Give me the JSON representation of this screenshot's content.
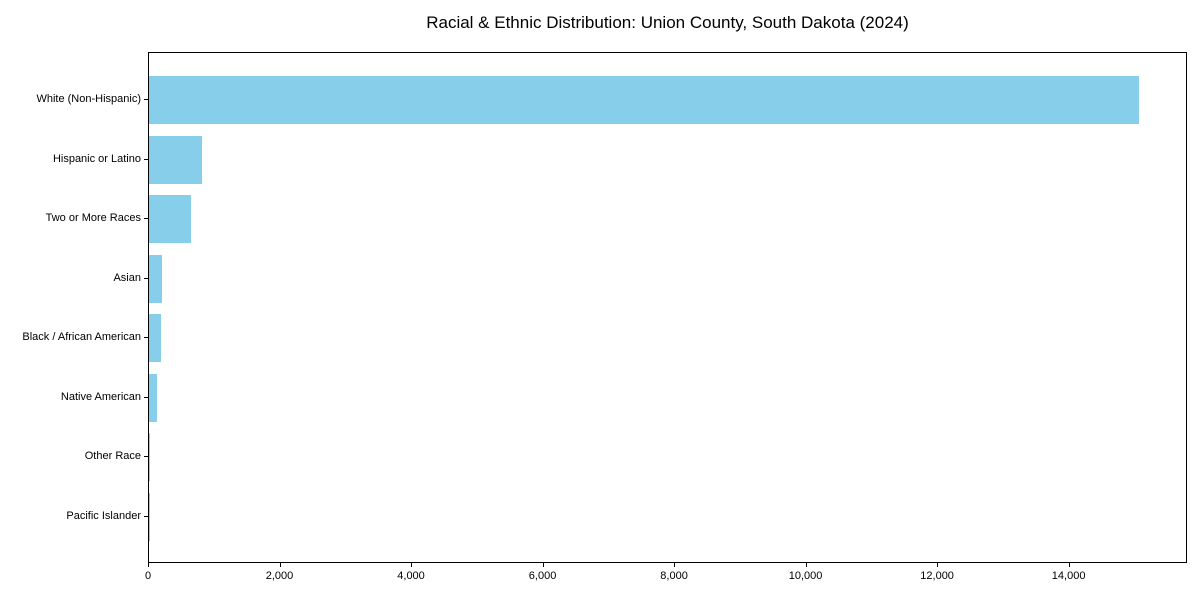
{
  "figure": {
    "background_color": "#ffffff",
    "axis_color": "#000000",
    "text_color": "#000000"
  },
  "chart_data": {
    "type": "bar",
    "orientation": "horizontal",
    "title": "Racial & Ethnic Distribution: Union County, South Dakota (2024)",
    "categories": [
      "White (Non-Hispanic)",
      "Hispanic or Latino",
      "Two or More Races",
      "Asian",
      "Black / African American",
      "Native American",
      "Other Race",
      "Pacific Islander"
    ],
    "values": [
      15050,
      810,
      640,
      200,
      175,
      120,
      15,
      6
    ],
    "xlabel": "",
    "ylabel": "",
    "xlim": [
      0,
      15800
    ],
    "x_ticks": [
      0,
      2000,
      4000,
      6000,
      8000,
      10000,
      12000,
      14000
    ],
    "x_tick_labels": [
      "0",
      "2,000",
      "4,000",
      "6,000",
      "8,000",
      "10,000",
      "12,000",
      "14,000"
    ],
    "bar_color": "#87CEEB",
    "grid": false,
    "legend_position": "none"
  }
}
